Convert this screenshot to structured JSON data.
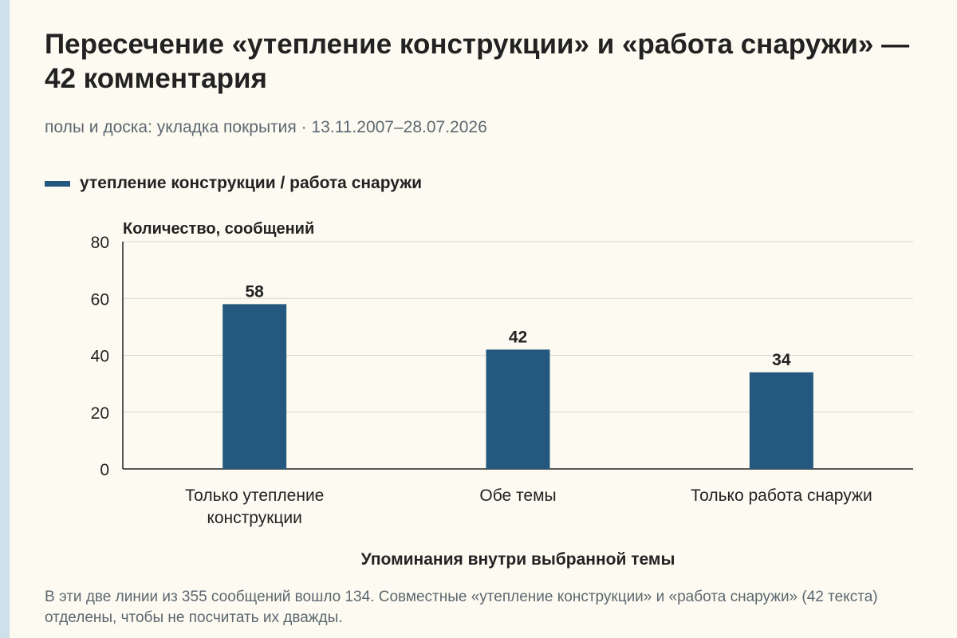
{
  "header": {
    "title": "Пересечение «утепление конструкции» и «работа снаружи» — 42 комментария",
    "subtitle": "полы и доска: укладка покрытия · 13.11.2007–28.07.2026"
  },
  "footnote": "В эти две линии из 355 сообщений вошло 134. Совместные «утепление конструкции» и «работа снаружи» (42 текста) отделены, чтобы не посчитать их дважды.",
  "colors": {
    "bar": "#24587e",
    "grid": "#d6d6d0",
    "axis": "#222222",
    "strip": "#cde0ec"
  },
  "chart_data": {
    "type": "bar",
    "title": "Пересечение «утепление конструкции» и «работа снаружи» — 42 комментария",
    "subtitle": "полы и доска: укладка покрытия · 13.11.2007–28.07.2026",
    "categories": [
      [
        "Только утепление",
        "конструкции"
      ],
      [
        "Обе темы"
      ],
      [
        "Только работа снаружи"
      ]
    ],
    "series": [
      {
        "name": "утепление конструкции / работа снаружи",
        "values": [
          58,
          42,
          34
        ],
        "color": "#24587e"
      }
    ],
    "ylabel": "Количество, сообщений",
    "xlabel": "Упоминания внутри выбранной темы",
    "ylim": [
      0,
      80
    ],
    "yticks": [
      0,
      20,
      40,
      60,
      80
    ],
    "grid": true,
    "legend": "top-left",
    "data_labels": true
  }
}
